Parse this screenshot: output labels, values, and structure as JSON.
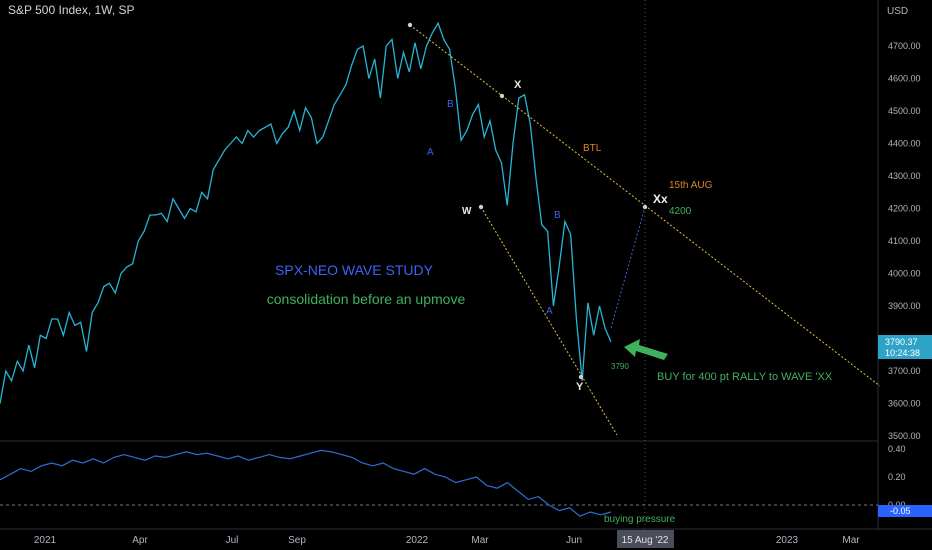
{
  "header": {
    "symbol_title": "S&P 500 Index, 1W, SP",
    "currency": "USD"
  },
  "annotations": {
    "study_title": "SPX-NEO WAVE STUDY",
    "subtitle": "consolidation before an upmove",
    "trendline_label": "BTL",
    "target_date": "15th AUG",
    "target_label": "Xx",
    "target_price": "4200",
    "buy_note": "BUY for 400 pt RALLY to WAVE 'XX",
    "low_price": "3790",
    "indicator_note": "buying pressure"
  },
  "price_tag": {
    "price": "3790.37",
    "countdown": "10:24:38"
  },
  "crosshair_date": "15 Aug '22",
  "indicator_value": "-0.05",
  "colors": {
    "background": "#000000",
    "price_line": "#26b5d6",
    "trendline": "#e0c13c",
    "wave_blue": "#3e62f2",
    "wave_green": "#3fb15e",
    "orange": "#d9862c",
    "axis_text": "#b2b5be",
    "price_tag_bg": "#2ea3c7",
    "indicator_tag_bg": "#2962ff"
  },
  "chart_data": {
    "type": "line",
    "title": "S&P 500 Index, 1W, SP",
    "ylabel": "USD",
    "y_axis_labels": [
      "4700.00",
      "4600.00",
      "4500.00",
      "4400.00",
      "4300.00",
      "4200.00",
      "4100.00",
      "4000.00",
      "3900.00",
      "3800.00",
      "3700.00",
      "3600.00",
      "3500.00"
    ],
    "ylim": [
      3490,
      4790
    ],
    "x_axis_labels": [
      "2021",
      "Apr",
      "Jul",
      "Sep",
      "2022",
      "Mar",
      "Jun",
      "2023",
      "Mar"
    ],
    "grid": false,
    "series": [
      {
        "values": [
          3600,
          3700,
          3670,
          3730,
          3700,
          3780,
          3710,
          3810,
          3800,
          3860,
          3860,
          3810,
          3880,
          3840,
          3850,
          3760,
          3880,
          3910,
          3960,
          3970,
          3940,
          4000,
          4020,
          4030,
          4100,
          4130,
          4180,
          4180,
          4185,
          4160,
          4230,
          4200,
          4170,
          4200,
          4190,
          4250,
          4230,
          4320,
          4350,
          4380,
          4400,
          4420,
          4400,
          4440,
          4420,
          4440,
          4450,
          4460,
          4400,
          4430,
          4450,
          4500,
          4440,
          4510,
          4480,
          4400,
          4420,
          4470,
          4520,
          4550,
          4580,
          4640,
          4690,
          4700,
          4600,
          4660,
          4540,
          4700,
          4720,
          4600,
          4680,
          4620,
          4710,
          4630,
          4700,
          4740,
          4770,
          4720,
          4690,
          4570,
          4410,
          4440,
          4490,
          4520,
          4420,
          4470,
          4380,
          4340,
          4210,
          4400,
          4540,
          4550,
          4460,
          4290,
          4150,
          4130,
          3900,
          4020,
          4160,
          4120,
          3860,
          3670,
          3910,
          3810,
          3900,
          3830,
          3790
        ]
      }
    ],
    "indicator": {
      "y_axis_labels": [
        "0.40",
        "0.20",
        "0.00"
      ],
      "last_value": -0.05
    }
  }
}
